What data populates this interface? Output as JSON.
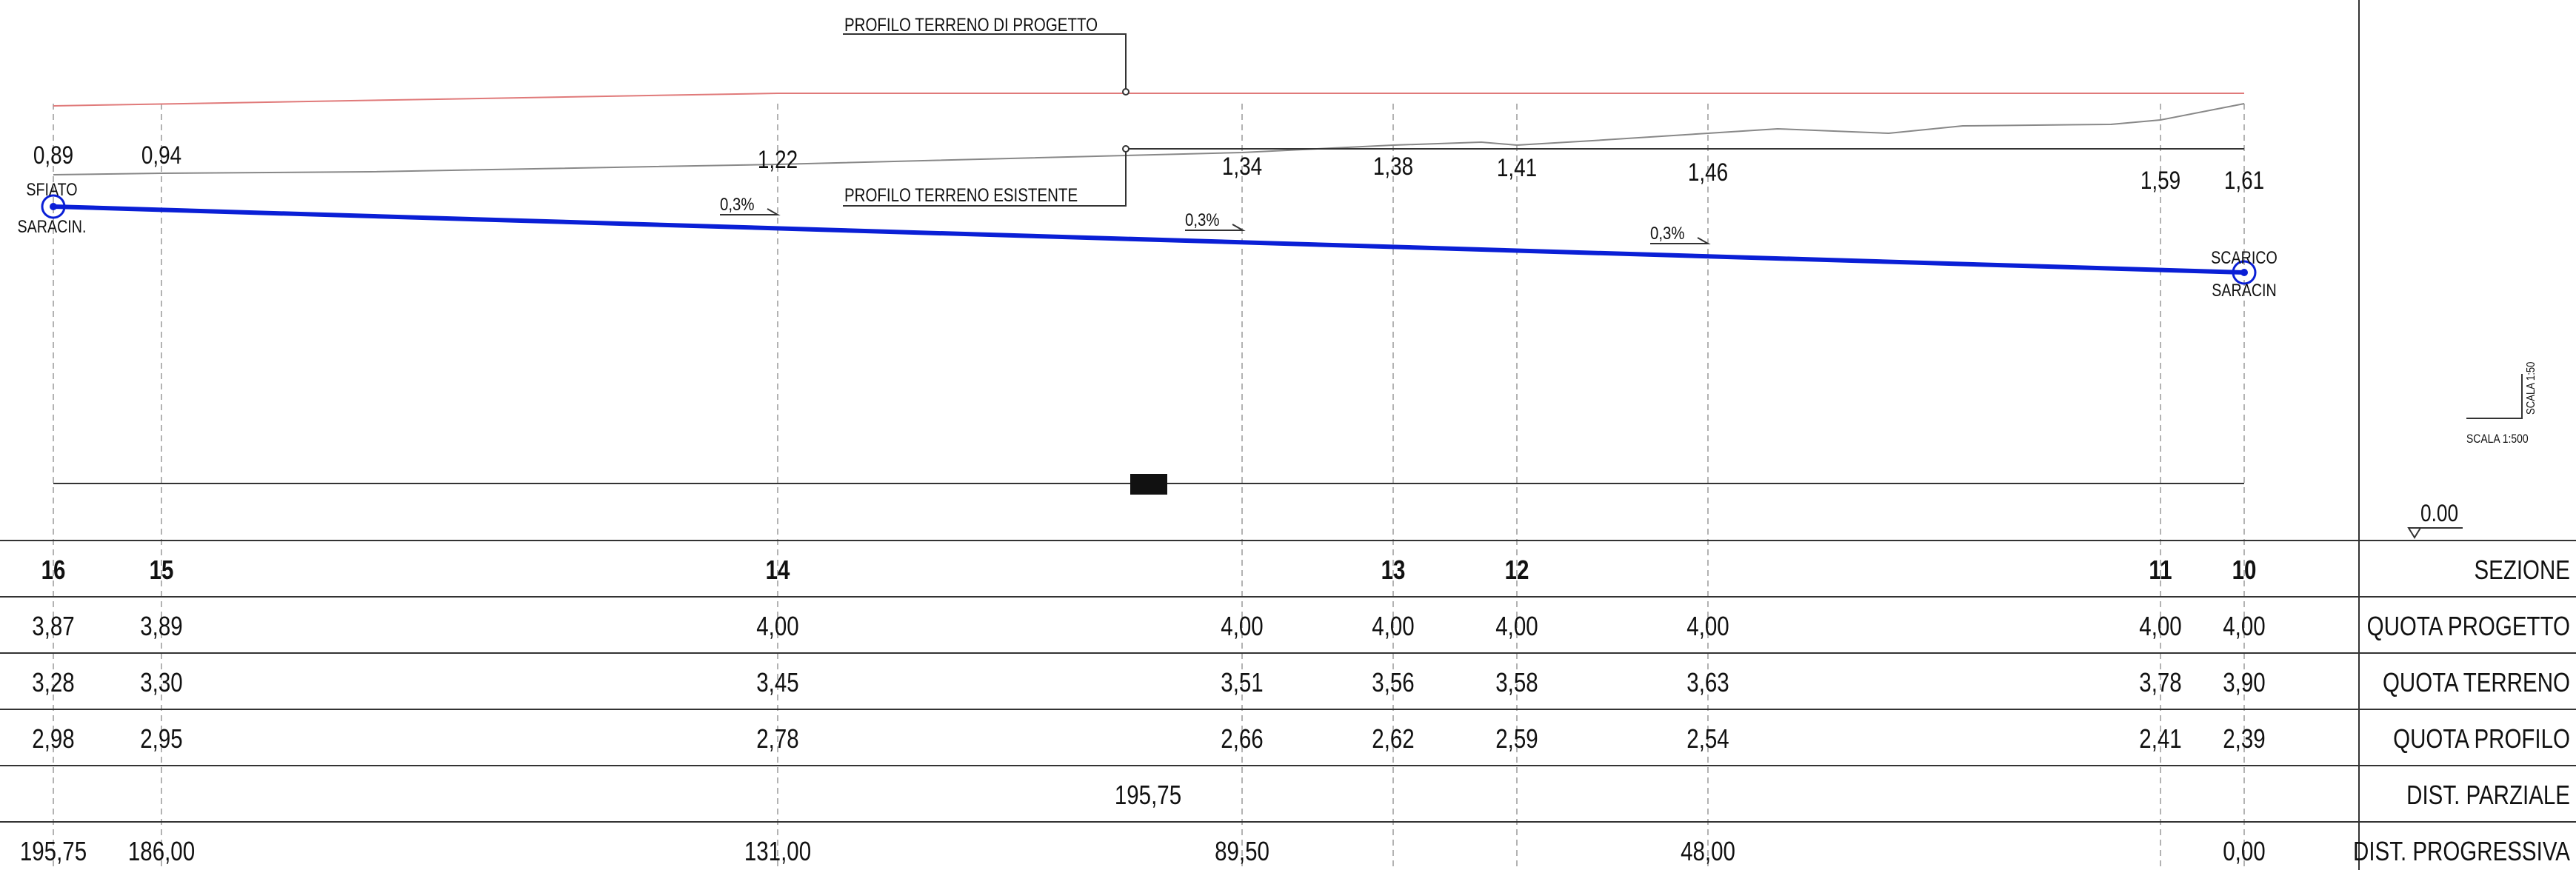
{
  "annotations": {
    "profilo_progetto": "PROFILO TERRENO DI PROGETTO",
    "profilo_esistente": "PROFILO TERRENO ESISTENTE",
    "sfiato": "SFIATO",
    "saracin_left": "SARACIN.",
    "scarico": "SCARICO",
    "saracin_right": "SARACIN",
    "scala_vertical": "SCALA 1:50",
    "scala_horizontal": "SCALA 1:500",
    "datum": "0.00"
  },
  "slopes": [
    "0,3%",
    "0,3%",
    "0,3%"
  ],
  "depth_labels": [
    "0,89",
    "0,94",
    "1,22",
    "1,34",
    "1,38",
    "1,41",
    "1,46",
    "1,59",
    "1,61"
  ],
  "row_labels": [
    "SEZIONE",
    "QUOTA PROGETTO",
    "QUOTA TERRENO",
    "QUOTA PROFILO",
    "DIST. PARZIALE",
    "DIST. PROGRESSIVA"
  ],
  "table": {
    "sezione": [
      "16",
      "15",
      "14",
      "13",
      "12",
      "11",
      "10"
    ],
    "quota_progetto": [
      "3,87",
      "3,89",
      "4,00",
      "4,00",
      "4,00",
      "4,00",
      "4,00",
      "4,00",
      "4,00"
    ],
    "quota_terreno": [
      "3,28",
      "3,30",
      "3,45",
      "3,51",
      "3,56",
      "3,58",
      "3,63",
      "3,78",
      "3,90"
    ],
    "quota_profilo": [
      "2,98",
      "2,95",
      "2,78",
      "2,66",
      "2,62",
      "2,59",
      "2,54",
      "2,41",
      "2,39"
    ],
    "dist_parziale": "195,75",
    "dist_progressiva": [
      "195,75",
      "186,00",
      "131,00",
      "89,50",
      "48,00",
      "0,00"
    ]
  },
  "colors": {
    "pipe": "#0a1fd6",
    "design_profile": "#e07a7a",
    "existing_profile": "#555555",
    "lines": "#333333"
  }
}
